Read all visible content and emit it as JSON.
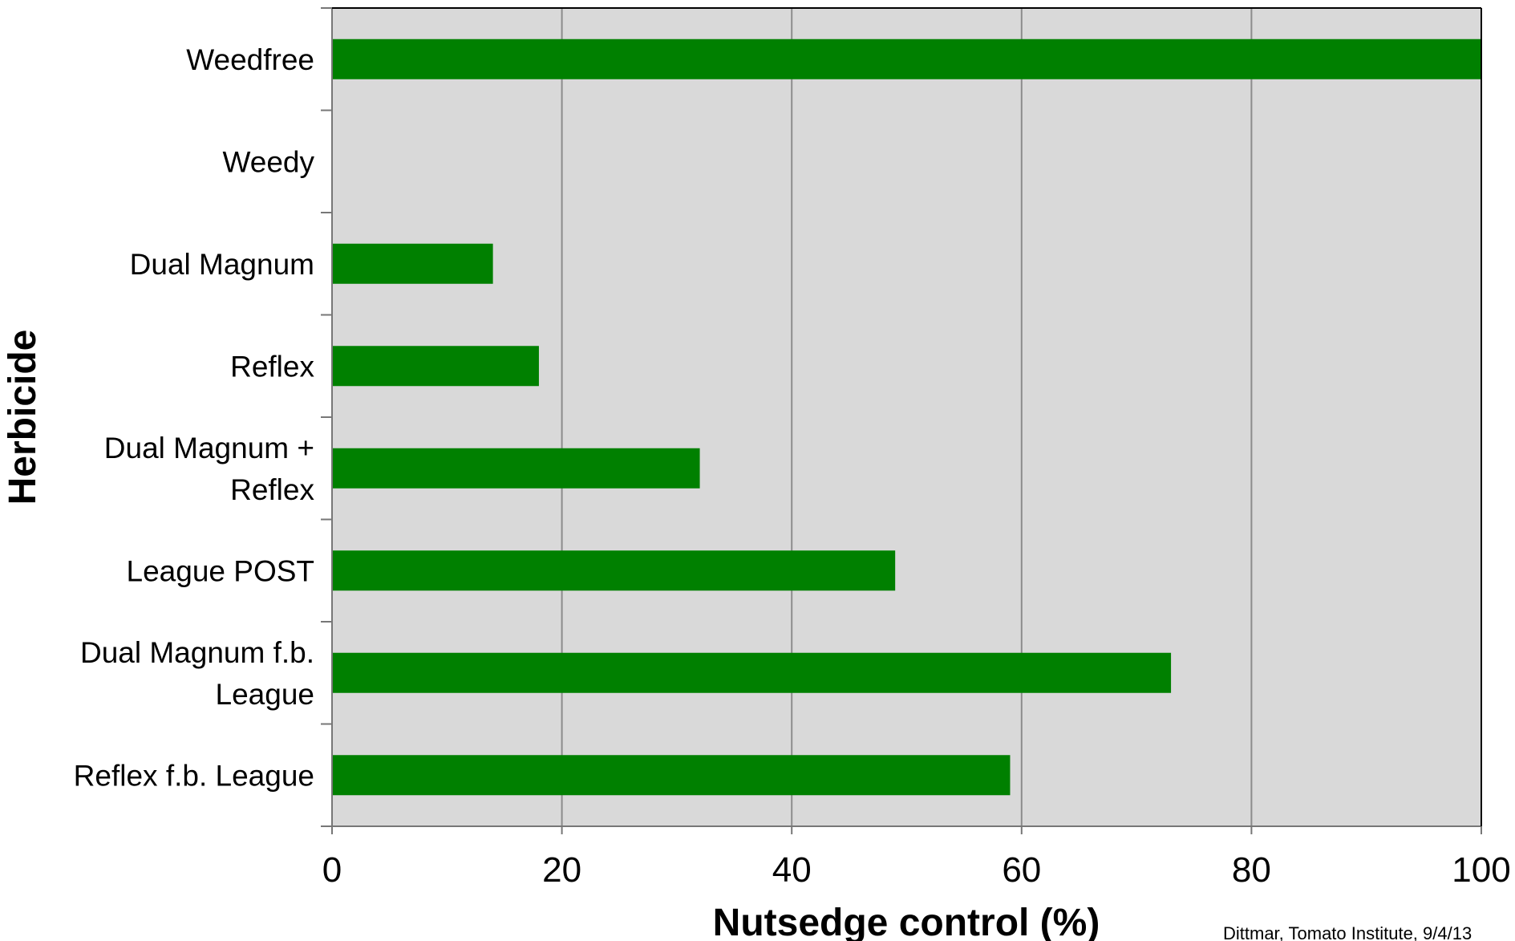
{
  "chart_data": {
    "type": "bar",
    "orientation": "horizontal",
    "title": "",
    "xlabel": "Nutsedge control (%)",
    "ylabel": "Herbicide",
    "xlim": [
      0,
      100
    ],
    "xticks": [
      "0",
      "20",
      "40",
      "60",
      "80",
      "100"
    ],
    "grid": true,
    "categories": [
      "Weedfree",
      "Weedy",
      "Dual Magnum",
      "Reflex",
      "Dual Magnum + Reflex",
      "League POST",
      "Dual Magnum f.b. League",
      "Reflex f.b. League"
    ],
    "category_label_lines": [
      [
        "Weedfree"
      ],
      [
        "Weedy"
      ],
      [
        "Dual Magnum"
      ],
      [
        "Reflex"
      ],
      [
        "Dual Magnum +",
        "Reflex"
      ],
      [
        "League POST"
      ],
      [
        "Dual Magnum f.b.",
        "League"
      ],
      [
        "Reflex f.b. League"
      ]
    ],
    "values": [
      100,
      0,
      14,
      18,
      32,
      49,
      73,
      59
    ],
    "colors": {
      "bar": "#008000",
      "plot_background": "#d9d9d9",
      "gridline": "#8c8c8c"
    }
  },
  "footer": {
    "credit": "Dittmar, Tomato Institute, 9/4/13"
  }
}
